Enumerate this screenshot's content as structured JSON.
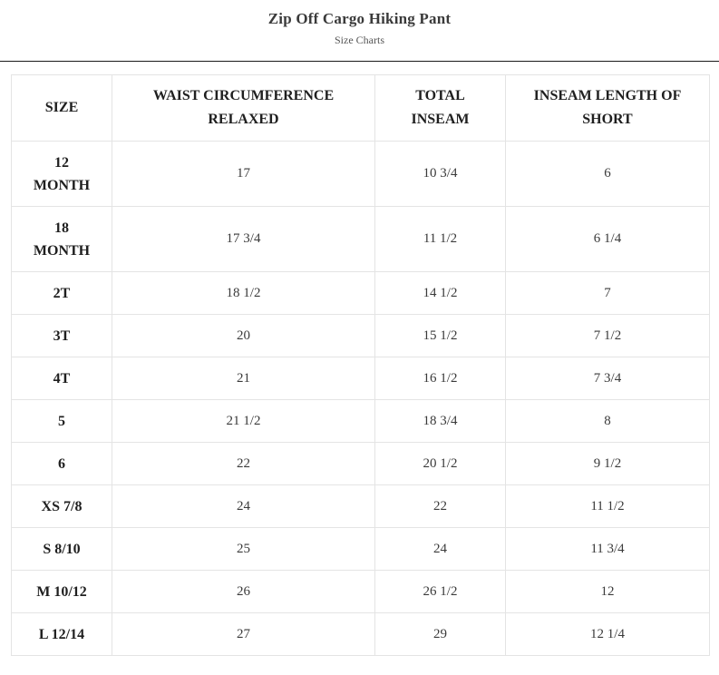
{
  "header": {
    "title": "Zip Off Cargo Hiking Pant",
    "subtitle": "Size Charts"
  },
  "table": {
    "columns": [
      "SIZE",
      "WAIST CIRCUMFERENCE RELAXED",
      "TOTAL INSEAM",
      "INSEAM LENGTH OF SHORT"
    ],
    "rows": [
      {
        "size": "12 MONTH",
        "waist": "17",
        "total": "10 3/4",
        "short": "6"
      },
      {
        "size": "18 MONTH",
        "waist": "17 3/4",
        "total": "11 1/2",
        "short": "6 1/4"
      },
      {
        "size": "2T",
        "waist": "18 1/2",
        "total": "14 1/2",
        "short": "7"
      },
      {
        "size": "3T",
        "waist": "20",
        "total": "15 1/2",
        "short": "7 1/2"
      },
      {
        "size": "4T",
        "waist": "21",
        "total": "16 1/2",
        "short": "7 3/4"
      },
      {
        "size": "5",
        "waist": "21 1/2",
        "total": "18 3/4",
        "short": "8"
      },
      {
        "size": "6",
        "waist": "22",
        "total": "20 1/2",
        "short": "9 1/2"
      },
      {
        "size": "XS 7/8",
        "waist": "24",
        "total": "22",
        "short": "11 1/2"
      },
      {
        "size": "S 8/10",
        "waist": "25",
        "total": "24",
        "short": "11 3/4"
      },
      {
        "size": "M 10/12",
        "waist": "26",
        "total": "26 1/2",
        "short": "12"
      },
      {
        "size": "L 12/14",
        "waist": "27",
        "total": "29",
        "short": "12 1/4"
      }
    ]
  }
}
